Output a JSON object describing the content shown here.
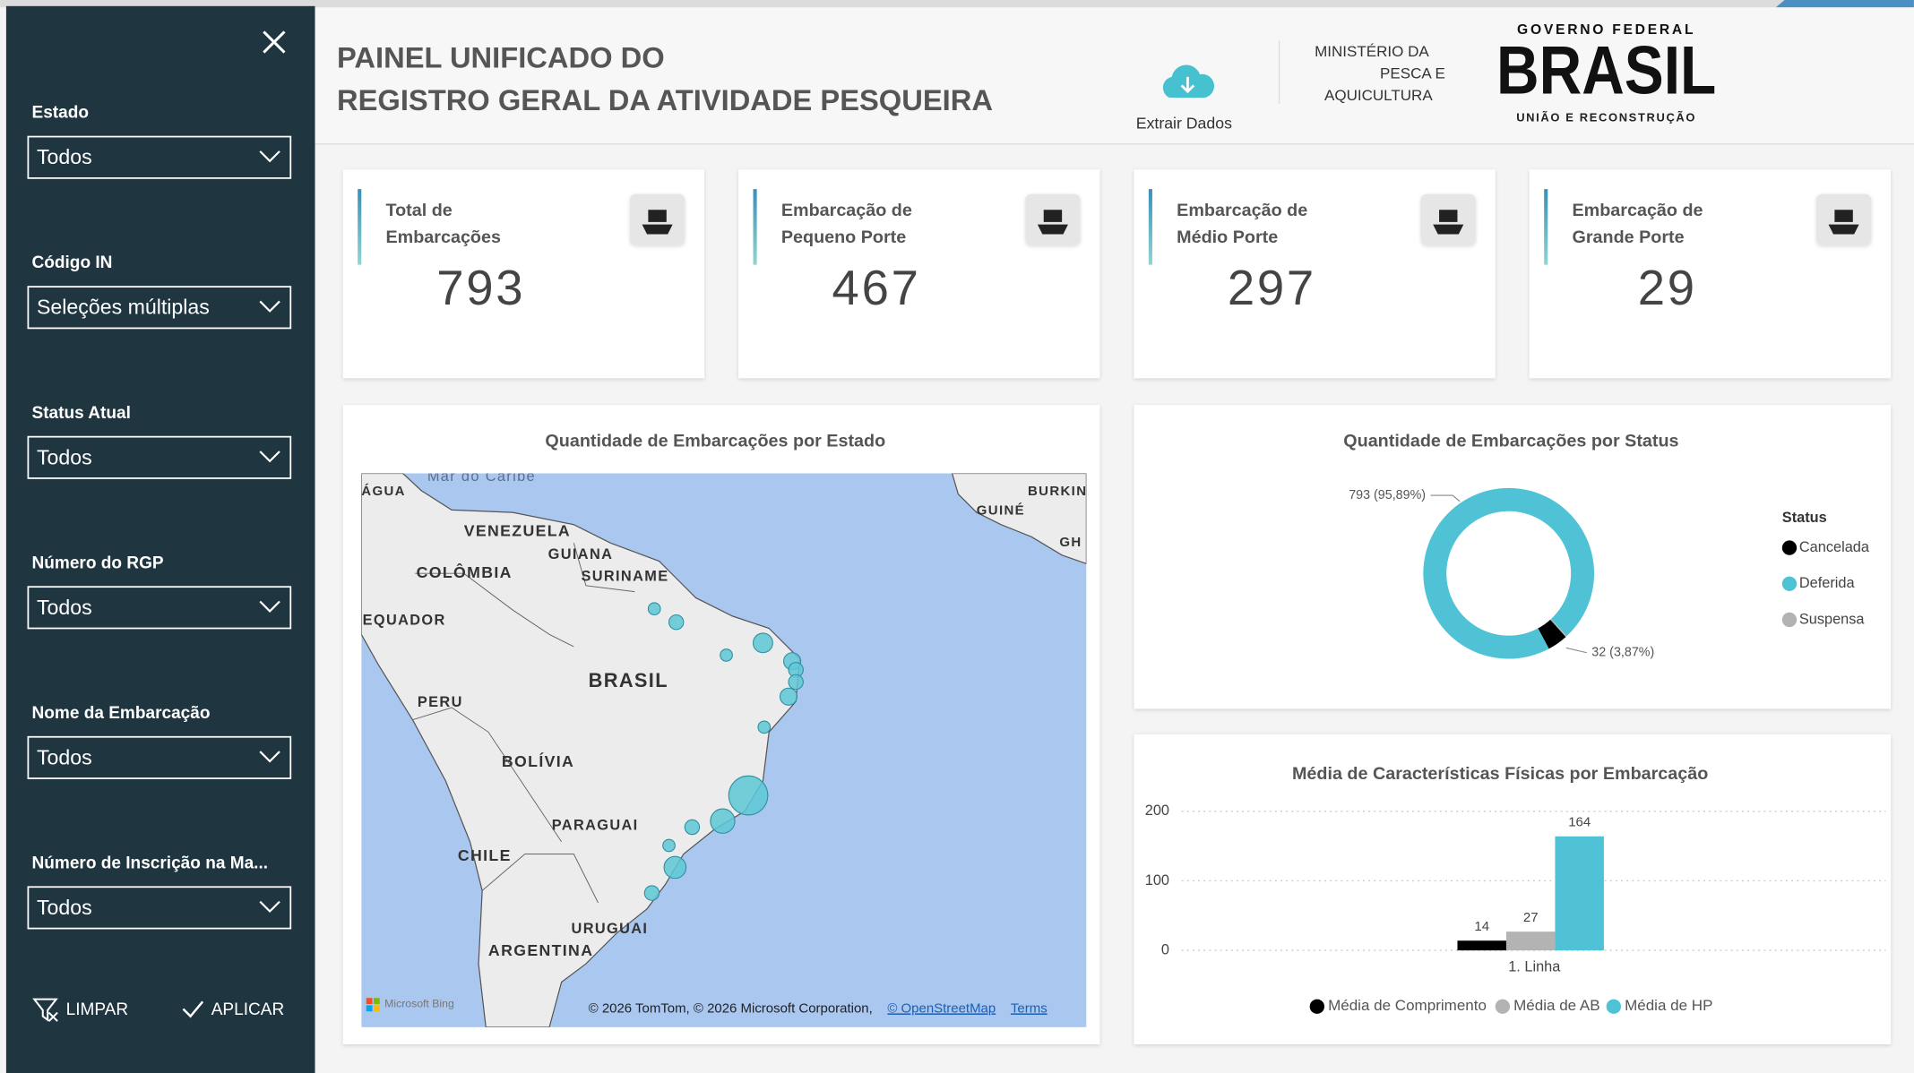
{
  "sidebar": {
    "filters": [
      {
        "label": "Estado",
        "value": "Todos"
      },
      {
        "label": "Código IN",
        "value": "Seleções múltiplas"
      },
      {
        "label": "Status Atual",
        "value": "Todos"
      },
      {
        "label": "Número do RGP",
        "value": "Todos"
      },
      {
        "label": "Nome da Embarcação",
        "value": "Todos"
      },
      {
        "label": "Número de Inscrição na Ma...",
        "value": "Todos"
      }
    ],
    "buttons": [
      "LIMPAR",
      "APLICAR"
    ]
  },
  "header": {
    "title_lines": [
      "PAINEL UNIFICADO DO",
      "REGISTRO GERAL DA ATIVIDADE PESQUEIRA"
    ],
    "extract": "Extrair Dados",
    "ministry_lines": [
      "MINISTÉRIO DA",
      "PESCA E",
      "AQUICULTURA"
    ],
    "logo_top": "GOVERNO FEDERAL",
    "logo_main": "BRASIL",
    "logo_bottom": "UNIÃO E RECONSTRUÇÃO"
  },
  "kpis": [
    {
      "label_lines": [
        "Total de",
        "Embarcações"
      ],
      "value": 793
    },
    {
      "label_lines": [
        "Embarcação de",
        "Pequeno Porte"
      ],
      "value": 467
    },
    {
      "label_lines": [
        "Embarcação de",
        "Médio Porte"
      ],
      "value": 297
    },
    {
      "label_lines": [
        "Embarcação de",
        "Grande Porte"
      ],
      "value": 29
    }
  ],
  "map": {
    "title": "Quantidade de Embarcações por Estado",
    "labels": [
      "ÁGUA",
      "Mar do Caribe",
      "VENEZUELA",
      "GUIANA",
      "SURINAME",
      "COLÔMBIA",
      "EQUADOR",
      "BRASIL",
      "PERU",
      "BOLÍVIA",
      "PARAGUAI",
      "CHILE",
      "URUGUAI",
      "ARGENTINA",
      "GUINÉ",
      "BURKIN",
      "GH"
    ],
    "bing": "Microsoft Bing",
    "attribution": "© 2026 TomTom, © 2026 Microsoft Corporation,",
    "osm": "© OpenStreetMap",
    "terms": "Terms"
  },
  "chart_data": [
    {
      "type": "pie",
      "title": "Quantidade de Embarcações por Status",
      "legend_title": "Status",
      "categories": [
        "Cancelada",
        "Deferida",
        "Suspensa"
      ],
      "values": [
        32,
        793,
        2
      ],
      "value_labels": [
        "32 (3,87%)",
        "793 (95,89%)",
        null
      ],
      "colors": [
        "#000000",
        "#4fc3d5",
        "#b3b3b3"
      ]
    },
    {
      "type": "bar",
      "title": "Média de Características Físicas por Embarcação",
      "categories": [
        "1. Linha"
      ],
      "series": [
        {
          "name": "Média de Comprimento",
          "color": "#000000",
          "values": [
            14
          ]
        },
        {
          "name": "Média de AB",
          "color": "#b3b3b3",
          "values": [
            27
          ]
        },
        {
          "name": "Média de HP",
          "color": "#4fc3d5",
          "values": [
            164
          ]
        }
      ],
      "ylim": [
        0,
        200
      ],
      "yticks": [
        0,
        100,
        200
      ],
      "grid": true
    }
  ]
}
